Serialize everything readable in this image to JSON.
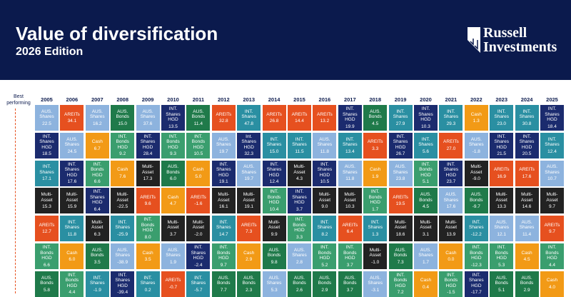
{
  "header": {
    "title": "Value of diversification",
    "subtitle": "2026 Edition",
    "logo": [
      "Russell",
      "Investments"
    ]
  },
  "axis_label": "Best performing",
  "columns": [
    {
      "year": "2005",
      "cells": [
        {
          "asset": "AUS. Shares",
          "value": "22.5",
          "color": "#8db3de"
        },
        {
          "asset": "INT. Shares HGD",
          "value": "18.5",
          "color": "#1b2b6e"
        },
        {
          "asset": "INT. Shares",
          "value": "17.1",
          "color": "#2a8fa2"
        },
        {
          "asset": "Multi-Asset",
          "value": "15.3",
          "color": "#222222"
        },
        {
          "asset": "AREITs",
          "value": "12.7",
          "color": "#e6501f"
        },
        {
          "asset": "INT. Bonds HGD",
          "value": "6.6",
          "color": "#3a9e6e"
        },
        {
          "asset": "AUS. Bonds",
          "value": "5.8",
          "color": "#1f7a4a"
        }
      ]
    },
    {
      "year": "2006",
      "cells": [
        {
          "asset": "AREITs",
          "value": "34.1",
          "color": "#e6501f"
        },
        {
          "asset": "AUS. Shares",
          "value": "24.5",
          "color": "#8db3de"
        },
        {
          "asset": "INT. Shares HGD",
          "value": "17.6",
          "color": "#1b2b6e"
        },
        {
          "asset": "Multi-Asset",
          "value": "15.9",
          "color": "#222222"
        },
        {
          "asset": "INT. Shares",
          "value": "11.8",
          "color": "#2a8fa2"
        },
        {
          "asset": "Cash",
          "value": "6.0",
          "color": "#f29a16"
        },
        {
          "asset": "INT. Bonds HGD",
          "value": "4.4",
          "color": "#3a9e6e"
        }
      ]
    },
    {
      "year": "2007",
      "cells": [
        {
          "asset": "AUS. Shares",
          "value": "16.2",
          "color": "#8db3de"
        },
        {
          "asset": "Cash",
          "value": "6.7",
          "color": "#f29a16"
        },
        {
          "asset": "INT. Bonds HGD",
          "value": "6.6",
          "color": "#3a9e6e"
        },
        {
          "asset": "INT. Shares HGD",
          "value": "6.4",
          "color": "#1b2b6e"
        },
        {
          "asset": "Multi-Asset",
          "value": "6.3",
          "color": "#222222"
        },
        {
          "asset": "AUS. Bonds",
          "value": "3.5",
          "color": "#1f7a4a"
        },
        {
          "asset": "INT. Shares",
          "value": "-1.9",
          "color": "#2a8fa2"
        }
      ]
    },
    {
      "year": "2008",
      "cells": [
        {
          "asset": "AUS. Bonds",
          "value": "15.0",
          "color": "#1f7a4a"
        },
        {
          "asset": "INT. Bonds HGD",
          "value": "9.2",
          "color": "#3a9e6e"
        },
        {
          "asset": "Cash",
          "value": "7.6",
          "color": "#f29a16"
        },
        {
          "asset": "Multi-Asset",
          "value": "-22.5",
          "color": "#222222"
        },
        {
          "asset": "INT. Shares",
          "value": "-25.9",
          "color": "#2a8fa2"
        },
        {
          "asset": "AUS. Shares",
          "value": "-38.9",
          "color": "#8db3de"
        },
        {
          "asset": "INT. Shares HGD",
          "value": "-39.4",
          "color": "#1b2b6e"
        }
      ]
    },
    {
      "year": "2009",
      "cells": [
        {
          "asset": "AUS. Shares",
          "value": "37.6",
          "color": "#8db3de"
        },
        {
          "asset": "INT. Shares HGD",
          "value": "28.4",
          "color": "#1b2b6e"
        },
        {
          "asset": "Multi-Asset",
          "value": "17.3",
          "color": "#222222"
        },
        {
          "asset": "AREITs",
          "value": "9.6",
          "color": "#e6501f"
        },
        {
          "asset": "INT. Bonds HGD",
          "value": "8.0",
          "color": "#3a9e6e"
        },
        {
          "asset": "Cash",
          "value": "3.5",
          "color": "#f29a16"
        },
        {
          "asset": "INT. Shares",
          "value": "0.2",
          "color": "#2a8fa2"
        }
      ]
    },
    {
      "year": "2010",
      "cells": [
        {
          "asset": "INT. Shares HGD",
          "value": "13.5",
          "color": "#1b2b6e"
        },
        {
          "asset": "INT. Bonds HGD",
          "value": "9.3",
          "color": "#3a9e6e"
        },
        {
          "asset": "AUS. Bonds",
          "value": "6.0",
          "color": "#1f7a4a"
        },
        {
          "asset": "Cash",
          "value": "4.7",
          "color": "#f29a16"
        },
        {
          "asset": "Multi-Asset",
          "value": "3.7",
          "color": "#222222"
        },
        {
          "asset": "AUS. Shares",
          "value": "1.9",
          "color": "#8db3de"
        },
        {
          "asset": "AREITs",
          "value": "-0.7",
          "color": "#e6501f"
        }
      ]
    },
    {
      "year": "2011",
      "cells": [
        {
          "asset": "AUS. Bonds",
          "value": "11.4",
          "color": "#1f7a4a"
        },
        {
          "asset": "INT. Bonds HGD",
          "value": "10.5",
          "color": "#3a9e6e"
        },
        {
          "asset": "Cash",
          "value": "5.0",
          "color": "#f29a16"
        },
        {
          "asset": "AREITs",
          "value": "-1.6",
          "color": "#e6501f"
        },
        {
          "asset": "Multi-Asset",
          "value": "-2.0",
          "color": "#222222"
        },
        {
          "asset": "INT. Shares HGD",
          "value": "-2.4",
          "color": "#1b2b6e"
        },
        {
          "asset": "INT. Shares",
          "value": "-5.7",
          "color": "#2a8fa2"
        }
      ]
    },
    {
      "year": "2012",
      "cells": [
        {
          "asset": "AREITs",
          "value": "32.8",
          "color": "#e6501f"
        },
        {
          "asset": "AUS. Shares",
          "value": "19.7",
          "color": "#8db3de"
        },
        {
          "asset": "INT. Shares HGD",
          "value": "19.1",
          "color": "#1b2b6e"
        },
        {
          "asset": "Multi-Asset",
          "value": "16.1",
          "color": "#222222"
        },
        {
          "asset": "INT. Shares",
          "value": "14.7",
          "color": "#2a8fa2"
        },
        {
          "asset": "INT. Bonds HGD",
          "value": "9.7",
          "color": "#3a9e6e"
        },
        {
          "asset": "AUS. Bonds",
          "value": "7.7",
          "color": "#1f7a4a"
        }
      ]
    },
    {
      "year": "2013",
      "cells": [
        {
          "asset": "INT. Shares",
          "value": "47.8",
          "color": "#2a8fa2"
        },
        {
          "asset": "Int. Shares HGD",
          "value": "32.3",
          "color": "#1b2b6e"
        },
        {
          "asset": "AUS. Shares",
          "value": "19.7",
          "color": "#8db3de"
        },
        {
          "asset": "Multi-Asset",
          "value": "19.1",
          "color": "#222222"
        },
        {
          "asset": "AREITs",
          "value": "7.3",
          "color": "#e6501f"
        },
        {
          "asset": "Cash",
          "value": "2.9",
          "color": "#f29a16"
        },
        {
          "asset": "AUS. Bonds",
          "value": "2.3",
          "color": "#1f7a4a"
        }
      ]
    },
    {
      "year": "2014",
      "cells": [
        {
          "asset": "AREITs",
          "value": "26.8",
          "color": "#e6501f"
        },
        {
          "asset": "INT. Shares",
          "value": "15.0",
          "color": "#2a8fa2"
        },
        {
          "asset": "INT. Shares HGD",
          "value": "12.4",
          "color": "#1b2b6e"
        },
        {
          "asset": "INT. Bonds HGD",
          "value": "10.4",
          "color": "#3a9e6e"
        },
        {
          "asset": "Multi-Asset",
          "value": "9.9",
          "color": "#222222"
        },
        {
          "asset": "AUS. Bonds",
          "value": "9.8",
          "color": "#1f7a4a"
        },
        {
          "asset": "AUS. Shares",
          "value": "5.3",
          "color": "#8db3de"
        }
      ]
    },
    {
      "year": "2015",
      "cells": [
        {
          "asset": "AREITs",
          "value": "14.4",
          "color": "#e6501f"
        },
        {
          "asset": "INT. Shares",
          "value": "11.5",
          "color": "#2a8fa2"
        },
        {
          "asset": "Multi-Asset",
          "value": "4.3",
          "color": "#222222"
        },
        {
          "asset": "INT. Shares HGD",
          "value": "3.7",
          "color": "#1b2b6e"
        },
        {
          "asset": "INT. Bonds HGD",
          "value": "3.3",
          "color": "#3a9e6e"
        },
        {
          "asset": "AUS. Shares",
          "value": "2.8",
          "color": "#8db3de"
        },
        {
          "asset": "AUS. Bonds",
          "value": "2.6",
          "color": "#1f7a4a"
        }
      ]
    },
    {
      "year": "2016",
      "cells": [
        {
          "asset": "AREITs",
          "value": "13.2",
          "color": "#e6501f"
        },
        {
          "asset": "AUS. Shares",
          "value": "11.8",
          "color": "#8db3de"
        },
        {
          "asset": "INT. Shares HGD",
          "value": "10.5",
          "color": "#1b2b6e"
        },
        {
          "asset": "Multi-Asset",
          "value": "9.0",
          "color": "#222222"
        },
        {
          "asset": "INT. Shares",
          "value": "8.2",
          "color": "#2a8fa2"
        },
        {
          "asset": "INT. Bonds HGD",
          "value": "5.2",
          "color": "#3a9e6e"
        },
        {
          "asset": "AUS. Bonds",
          "value": "2.9",
          "color": "#1f7a4a"
        }
      ]
    },
    {
      "year": "2017",
      "cells": [
        {
          "asset": "INT. Shares HGD",
          "value": "19.9",
          "color": "#1b2b6e"
        },
        {
          "asset": "INT. Shares",
          "value": "13.4",
          "color": "#2a8fa2"
        },
        {
          "asset": "AUS. Shares",
          "value": "11.8",
          "color": "#8db3de"
        },
        {
          "asset": "Multi-Asset",
          "value": "10.3",
          "color": "#222222"
        },
        {
          "asset": "AREITs",
          "value": "6.4",
          "color": "#e6501f"
        },
        {
          "asset": "INT. Bonds HGD",
          "value": "3.7",
          "color": "#3a9e6e"
        },
        {
          "asset": "AUS. Bonds",
          "value": "3.7",
          "color": "#1f7a4a"
        }
      ]
    },
    {
      "year": "2018",
      "cells": [
        {
          "asset": "AUS. Bonds",
          "value": "4.5",
          "color": "#1f7a4a"
        },
        {
          "asset": "AREITs",
          "value": "3.3",
          "color": "#e6501f"
        },
        {
          "asset": "Cash",
          "value": "1.9",
          "color": "#f29a16"
        },
        {
          "asset": "INT. Bonds HGD",
          "value": "1.7",
          "color": "#3a9e6e"
        },
        {
          "asset": "INT. Shares",
          "value": "1.3",
          "color": "#2a8fa2"
        },
        {
          "asset": "Multi-Asset",
          "value": "-1.0",
          "color": "#222222"
        },
        {
          "asset": "AUS. Shares",
          "value": "-3.1",
          "color": "#8db3de"
        }
      ]
    },
    {
      "year": "2019",
      "cells": [
        {
          "asset": "INT. Shares",
          "value": "27.9",
          "color": "#2a8fa2"
        },
        {
          "asset": "INT. Shares HGD",
          "value": "26.7",
          "color": "#1b2b6e"
        },
        {
          "asset": "AUS. Shares",
          "value": "23.8",
          "color": "#8db3de"
        },
        {
          "asset": "AREITs",
          "value": "19.5",
          "color": "#e6501f"
        },
        {
          "asset": "Multi-Asset",
          "value": "18.6",
          "color": "#222222"
        },
        {
          "asset": "AUS. Bonds",
          "value": "7.3",
          "color": "#1f7a4a"
        },
        {
          "asset": "INT. Bonds HGD",
          "value": "7.2",
          "color": "#3a9e6e"
        }
      ]
    },
    {
      "year": "2020",
      "cells": [
        {
          "asset": "INT. Shares HGD",
          "value": "10.3",
          "color": "#1b2b6e"
        },
        {
          "asset": "INT. Shares",
          "value": "5.6",
          "color": "#2a8fa2"
        },
        {
          "asset": "INT. Bonds HGD",
          "value": "5.1",
          "color": "#3a9e6e"
        },
        {
          "asset": "AUS. Bonds",
          "value": "4.5",
          "color": "#1f7a4a"
        },
        {
          "asset": "Multi-Asset",
          "value": "3.1",
          "color": "#222222"
        },
        {
          "asset": "AUS. Shares",
          "value": "1.7",
          "color": "#8db3de"
        },
        {
          "asset": "Cash",
          "value": "0.4",
          "color": "#f29a16"
        }
      ]
    },
    {
      "year": "2021",
      "cells": [
        {
          "asset": "INT. Shares",
          "value": "29.3",
          "color": "#2a8fa2"
        },
        {
          "asset": "AREITs",
          "value": "27.0",
          "color": "#e6501f"
        },
        {
          "asset": "INT. Shares HGD",
          "value": "23.7",
          "color": "#1b2b6e"
        },
        {
          "asset": "AUS. Shares",
          "value": "17.6",
          "color": "#8db3de"
        },
        {
          "asset": "Multi-Asset",
          "value": "13.9",
          "color": "#222222"
        },
        {
          "asset": "Cash",
          "value": "0.0",
          "color": "#f29a16"
        },
        {
          "asset": "INT. Bonds HGD",
          "value": "-1.5",
          "color": "#3a9e6e"
        }
      ]
    },
    {
      "year": "2022",
      "cells": [
        {
          "asset": "Cash",
          "value": "1.3",
          "color": "#f29a16"
        },
        {
          "asset": "AUS. Shares",
          "value": "-1.8",
          "color": "#8db3de"
        },
        {
          "asset": "Multi-Asset",
          "value": "-9.0",
          "color": "#222222"
        },
        {
          "asset": "AUS. Bonds",
          "value": "-9.7",
          "color": "#1f7a4a"
        },
        {
          "asset": "INT. Shares",
          "value": "-12.2",
          "color": "#2a8fa2"
        },
        {
          "asset": "INT. Bonds HGD",
          "value": "-12.3",
          "color": "#3a9e6e"
        },
        {
          "asset": "INT. Shares HGD",
          "value": "-17.7",
          "color": "#1b2b6e"
        }
      ]
    },
    {
      "year": "2023",
      "cells": [
        {
          "asset": "INT. Shares",
          "value": "23.0",
          "color": "#2a8fa2"
        },
        {
          "asset": "INT. Shares HGD",
          "value": "21.5",
          "color": "#1b2b6e"
        },
        {
          "asset": "AREITs",
          "value": "16.9",
          "color": "#e6501f"
        },
        {
          "asset": "Multi-Asset",
          "value": "13.3",
          "color": "#222222"
        },
        {
          "asset": "AUS. Shares",
          "value": "12.1",
          "color": "#8db3de"
        },
        {
          "asset": "INT. Bonds HGD",
          "value": "5.3",
          "color": "#3a9e6e"
        },
        {
          "asset": "AUS. Bonds",
          "value": "5.1",
          "color": "#1f7a4a"
        }
      ]
    },
    {
      "year": "2024",
      "cells": [
        {
          "asset": "INT. Shares",
          "value": "30.8",
          "color": "#2a8fa2"
        },
        {
          "asset": "INT. Shares HGD",
          "value": "20.5",
          "color": "#1b2b6e"
        },
        {
          "asset": "AREITs",
          "value": "17.6",
          "color": "#e6501f"
        },
        {
          "asset": "Multi-Asset",
          "value": "14.6",
          "color": "#222222"
        },
        {
          "asset": "AUS. Shares",
          "value": "11.4",
          "color": "#8db3de"
        },
        {
          "asset": "Cash",
          "value": "4.5",
          "color": "#f29a16"
        },
        {
          "asset": "AUS. Bonds",
          "value": "2.9",
          "color": "#1f7a4a"
        }
      ]
    },
    {
      "year": "2025",
      "cells": [
        {
          "asset": "INT. Shares HGD",
          "value": "18.4",
          "color": "#1b2b6e"
        },
        {
          "asset": "INT. Shares",
          "value": "12.4",
          "color": "#2a8fa2"
        },
        {
          "asset": "AUS. Shares",
          "value": "10.7",
          "color": "#8db3de"
        },
        {
          "asset": "Multi-Asset",
          "value": "9.7",
          "color": "#222222"
        },
        {
          "asset": "AREITs",
          "value": "9.7",
          "color": "#e6501f"
        },
        {
          "asset": "INT. Bonds HGD",
          "value": "4.4",
          "color": "#3a9e6e"
        },
        {
          "asset": "Cash",
          "value": "4.0",
          "color": "#f29a16"
        }
      ]
    }
  ]
}
